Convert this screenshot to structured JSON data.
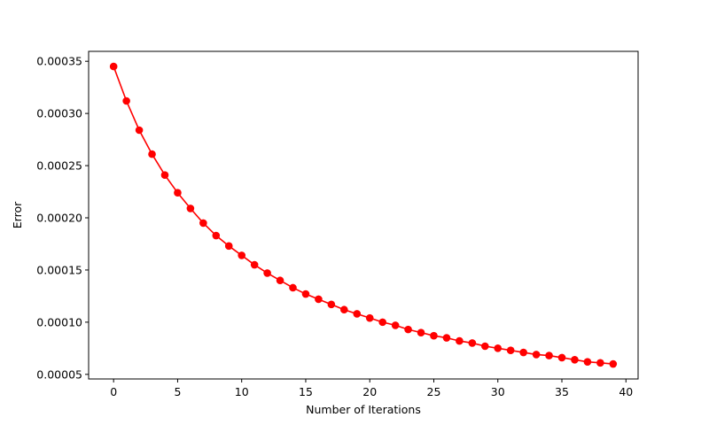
{
  "chart_data": {
    "type": "line",
    "xlabel": "Number of Iterations",
    "ylabel": "Error",
    "xlim": [
      -1.95,
      40.95
    ],
    "ylim": [
      4.56e-05,
      0.0003595
    ],
    "x_ticks": [
      0,
      5,
      10,
      15,
      20,
      25,
      30,
      35,
      40
    ],
    "x_tick_labels": [
      "0",
      "5",
      "10",
      "15",
      "20",
      "25",
      "30",
      "35",
      "40"
    ],
    "y_ticks": [
      5e-05,
      0.0001,
      0.00015,
      0.0002,
      0.00025,
      0.0003,
      0.00035
    ],
    "y_tick_labels": [
      "0.00005",
      "0.00010",
      "0.00015",
      "0.00020",
      "0.00025",
      "0.00030",
      "0.00035"
    ],
    "grid": false,
    "series": [
      {
        "color": "#ff0000",
        "marker": "circle",
        "x": [
          0,
          1,
          2,
          3,
          4,
          5,
          6,
          7,
          8,
          9,
          10,
          11,
          12,
          13,
          14,
          15,
          16,
          17,
          18,
          19,
          20,
          21,
          22,
          23,
          24,
          25,
          26,
          27,
          28,
          29,
          30,
          31,
          32,
          33,
          34,
          35,
          36,
          37,
          38,
          39
        ],
        "values": [
          0.000345,
          0.000312,
          0.000284,
          0.000261,
          0.000241,
          0.000224,
          0.000209,
          0.000195,
          0.000183,
          0.000173,
          0.000164,
          0.000155,
          0.000147,
          0.00014,
          0.000133,
          0.000127,
          0.000122,
          0.000117,
          0.000112,
          0.000108,
          0.000104,
          0.0001,
          9.7e-05,
          9.3e-05,
          9e-05,
          8.7e-05,
          8.5e-05,
          8.2e-05,
          8e-05,
          7.7e-05,
          7.5e-05,
          7.3e-05,
          7.1e-05,
          6.9e-05,
          6.8e-05,
          6.6e-05,
          6.4e-05,
          6.2e-05,
          6.1e-05,
          6e-05
        ]
      }
    ]
  }
}
